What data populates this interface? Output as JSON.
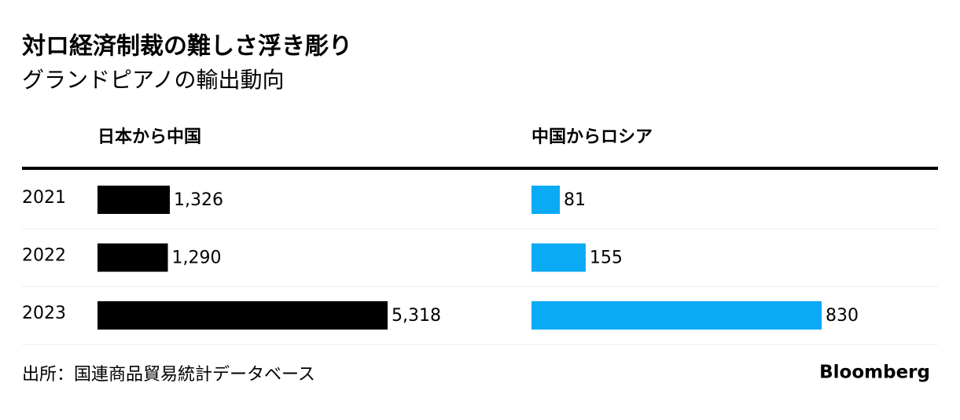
{
  "chart_data": {
    "type": "bar",
    "title": "対ロ経済制裁の難しさ浮き彫り",
    "subtitle": "グランドピアノの輸出動向",
    "categories": [
      "2021",
      "2022",
      "2023"
    ],
    "series": [
      {
        "name": "日本から中国",
        "color": "#000000",
        "values": [
          1326,
          1290,
          5318
        ],
        "value_labels": [
          "1,326",
          "1,290",
          "5,318"
        ]
      },
      {
        "name": "中国からロシア",
        "color": "#0aaaf5",
        "values": [
          81,
          155,
          830
        ],
        "value_labels": [
          "81",
          "155",
          "830"
        ]
      }
    ],
    "source": "出所：国連商品貿易統計データベース",
    "credit": "Bloomberg"
  }
}
